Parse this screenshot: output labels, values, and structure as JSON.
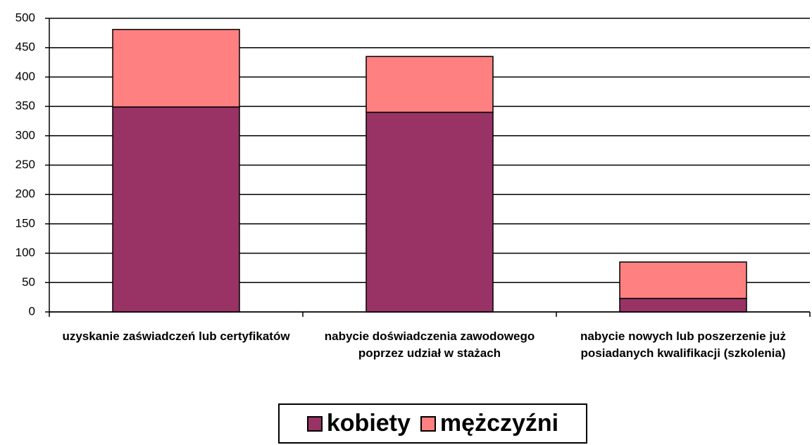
{
  "chart_data": {
    "type": "stacked_bar",
    "categories": [
      "uzyskanie zaświadczeń lub certyfikatów",
      "nabycie doświadczenia zawodowego poprzez udział w stażach",
      "nabycie nowych lub poszerzenie już posiadanych kwalifikacji (szkolenia)"
    ],
    "series": [
      {
        "name": "kobiety",
        "color": "#993366",
        "values": [
          349,
          340,
          23
        ]
      },
      {
        "name": "mężczyźni",
        "color": "#ff8080",
        "values": [
          132,
          95,
          62
        ]
      }
    ],
    "ylim": [
      0,
      500
    ],
    "yticks": [
      0,
      50,
      100,
      150,
      200,
      250,
      300,
      350,
      400,
      450,
      500
    ],
    "grid": true,
    "legend": "bottom"
  }
}
